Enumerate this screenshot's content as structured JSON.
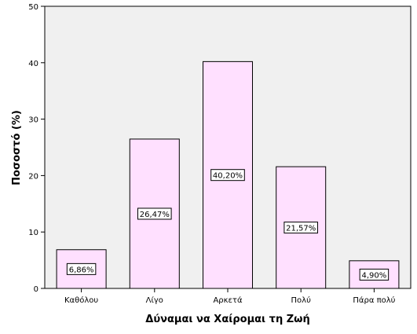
{
  "chart_data": {
    "type": "bar",
    "categories": [
      "Καθόλου",
      "Λίγο",
      "Αρκετά",
      "Πολύ",
      "Πάρα πολύ"
    ],
    "values": [
      6.86,
      26.47,
      40.2,
      21.57,
      4.9
    ],
    "data_labels": [
      "6,86%",
      "26,47%",
      "40,20%",
      "21,57%",
      "4,90%"
    ],
    "xlabel": "Δύναμαι να Χαίρομαι τη Ζωή",
    "ylabel": "Ποσοστό (%)",
    "ylim": [
      0,
      50
    ],
    "yticks": [
      0,
      10,
      20,
      30,
      40,
      50
    ],
    "grid": false,
    "colors": {
      "plot_background": "#f0f0f0",
      "bar_fill": "#ffe0ff",
      "bar_stroke": "#000000"
    }
  }
}
